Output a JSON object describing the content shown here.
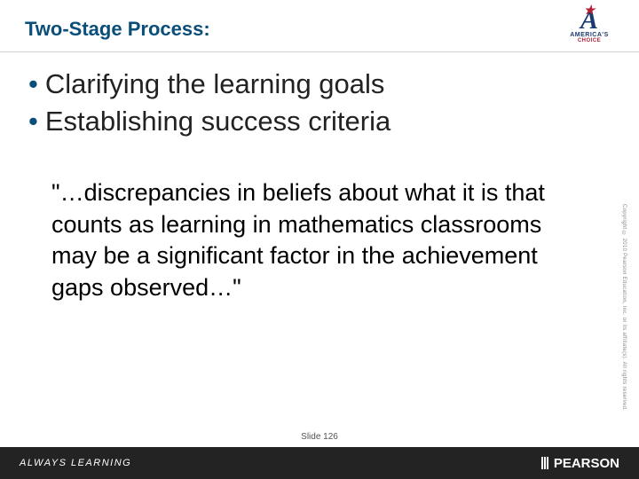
{
  "title": "Two-Stage Process:",
  "bullets": [
    "Clarifying the learning goals",
    "Establishing success criteria"
  ],
  "quote": "\"…discrepancies in beliefs about what it is that counts as learning in mathematics classrooms may be a significant factor in the achievement gaps observed…\"",
  "slideNumber": "Slide 126",
  "footer": {
    "left": "ALWAYS LEARNING",
    "right": "PEARSON"
  },
  "logo": {
    "top": "AMERICA'S",
    "bottom": "CHOICE"
  },
  "copyright": "Copyright © 2010 Pearson Education, Inc. or its affiliate(s). All rights reserved.",
  "colors": {
    "titleColor": "#0a4e7a",
    "bulletColor": "#0a4e7a",
    "footerBg": "#232323",
    "textColor": "#222222"
  },
  "typography": {
    "titleFontSize": 22,
    "bulletFontSize": 31,
    "quoteFontSize": 27,
    "footerFontSize": 11
  }
}
